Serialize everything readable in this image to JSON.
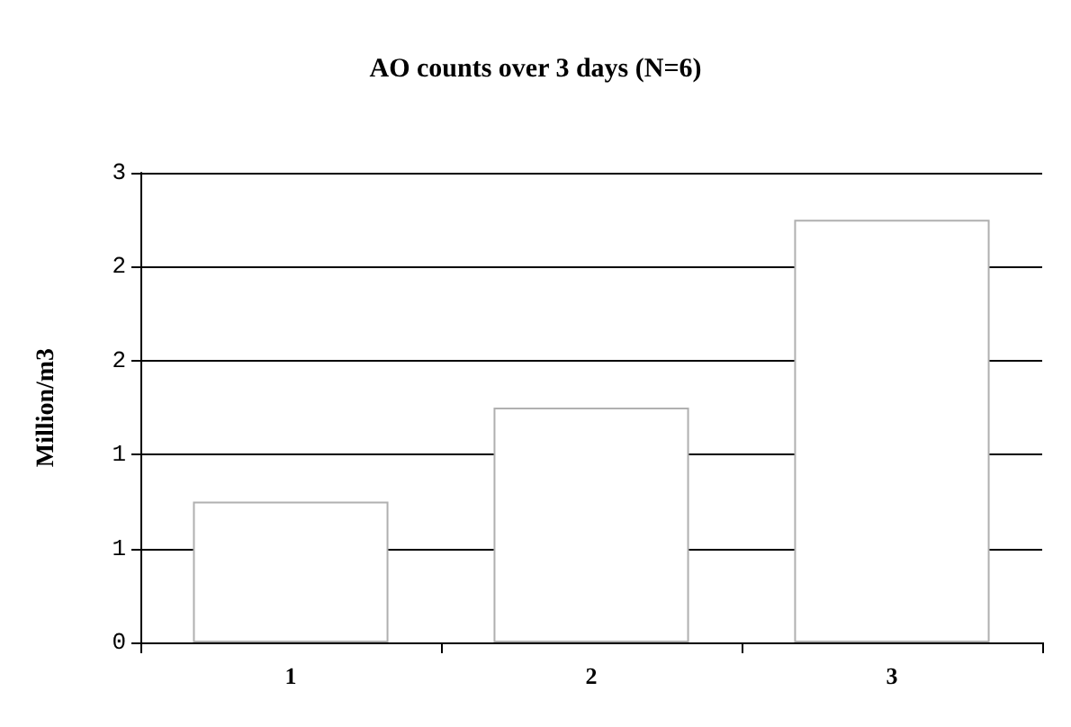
{
  "chart_data": {
    "type": "bar",
    "title": "AO counts over 3 days (N=6)",
    "ylabel": "Million/m3",
    "categories": [
      "1",
      "2",
      "3"
    ],
    "values": [
      0.75,
      1.25,
      2.25
    ],
    "color": "#ffffff",
    "ylim": [
      0,
      2.5
    ],
    "yticks": [
      0,
      {
        "value": 0.5,
        "label": "1"
      },
      1,
      {
        "value": 1.5,
        "label": "2"
      },
      2,
      {
        "value": 2.5,
        "label": "3"
      }
    ],
    "grid": "y"
  }
}
